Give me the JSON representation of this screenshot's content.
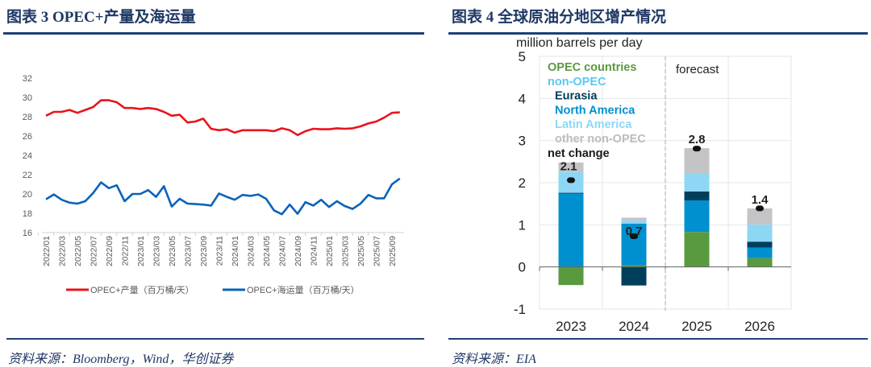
{
  "left": {
    "title": "图表 3   OPEC+产量及海运量",
    "source": "资料来源：Bloomberg，Wind，华创证券"
  },
  "right": {
    "title": "图表 4   全球原油分地区增产情况",
    "source": "资料来源：EIA"
  },
  "chart_data": [
    {
      "type": "line",
      "title": "OPEC+产量及海运量",
      "ylim": [
        16,
        32
      ],
      "yticks": [
        16,
        18,
        20,
        22,
        24,
        26,
        28,
        30,
        32
      ],
      "x_tick_labels": [
        "2022/01",
        "2022/03",
        "2022/05",
        "2022/07",
        "2022/09",
        "2022/11",
        "2023/01",
        "2023/03",
        "2023/05",
        "2023/07",
        "2023/09",
        "2023/11",
        "2024/01",
        "2024/03",
        "2024/05",
        "2024/07",
        "2024/09",
        "2024/11",
        "2025/01",
        "2025/03",
        "2025/05",
        "2025/07",
        "2025/09"
      ],
      "x_start": "2022/01",
      "x_end": "2025/10",
      "legend_position": "bottom",
      "series": [
        {
          "name": "OPEC+产量（百万桶/天）",
          "color": "#e8141c",
          "values": [
            28.1,
            28.5,
            28.5,
            28.7,
            28.4,
            28.7,
            29.0,
            29.7,
            29.7,
            29.5,
            28.9,
            28.9,
            28.8,
            28.9,
            28.8,
            28.5,
            28.1,
            28.2,
            27.4,
            27.5,
            27.8,
            26.75,
            26.6,
            26.7,
            26.35,
            26.6,
            26.6,
            26.6,
            26.6,
            26.5,
            26.8,
            26.6,
            26.1,
            26.5,
            26.75,
            26.7,
            26.7,
            26.8,
            26.75,
            26.8,
            27.0,
            27.3,
            27.5,
            27.9,
            28.4,
            28.45
          ]
        },
        {
          "name": "OPEC+海运量（百万桶/天）",
          "color": "#0a63b8",
          "values": [
            19.45,
            19.95,
            19.4,
            19.1,
            19.0,
            19.25,
            20.1,
            21.2,
            20.6,
            20.9,
            19.25,
            20.0,
            20.0,
            20.4,
            19.7,
            20.8,
            18.7,
            19.5,
            19.0,
            18.95,
            18.9,
            18.8,
            20.05,
            19.7,
            19.4,
            19.9,
            19.8,
            19.95,
            19.5,
            18.3,
            17.9,
            18.9,
            17.95,
            19.15,
            18.8,
            19.4,
            18.65,
            19.25,
            18.75,
            18.45,
            19.0,
            19.9,
            19.55,
            19.55,
            21.0,
            21.6
          ]
        }
      ]
    },
    {
      "type": "bar",
      "stacked": true,
      "title": "全球原油分地区增产情况",
      "ylabel": "million barrels per day",
      "ylim": [
        -1,
        5
      ],
      "yticks": [
        -1,
        0,
        1,
        2,
        3,
        4,
        5
      ],
      "categories": [
        "2023",
        "2024",
        "2025",
        "2026"
      ],
      "forecast_label": "forecast",
      "forecast_from": "2025",
      "legend_position": "top-left",
      "legend": [
        {
          "label": "OPEC countries",
          "color": "#5a9a3e",
          "indent": false
        },
        {
          "label": "non-OPEC",
          "color": "#5bc8f0",
          "indent": false
        },
        {
          "label": "Eurasia",
          "color": "#003f5c",
          "indent": true
        },
        {
          "label": "North America",
          "color": "#0090d0",
          "indent": true
        },
        {
          "label": "Latin America",
          "color": "#8dd7f5",
          "indent": true
        },
        {
          "label": "other non-OPEC",
          "color": "#bdbdbf",
          "indent": true
        },
        {
          "label": "net change",
          "color": "#1a1a1a",
          "indent": false
        }
      ],
      "series": [
        {
          "name": "OPEC countries",
          "color": "#5a9a3e",
          "values": [
            -0.43,
            0.04,
            0.83,
            0.21
          ]
        },
        {
          "name": "North America",
          "color": "#0090d0",
          "values": [
            1.74,
            0.99,
            0.75,
            0.25
          ]
        },
        {
          "name": "Eurasia",
          "color": "#003f5c",
          "values": [
            0.02,
            -0.44,
            0.21,
            0.14
          ]
        },
        {
          "name": "Latin America",
          "color": "#8dd7f5",
          "values": [
            0.5,
            0.07,
            0.44,
            0.41
          ]
        },
        {
          "name": "other non-OPEC",
          "color": "#c4c4c6",
          "values": [
            0.22,
            0.07,
            0.59,
            0.38
          ]
        }
      ],
      "net_change": [
        2.06,
        0.73,
        2.81,
        1.39
      ],
      "net_change_labels": [
        "2.1",
        "0.7",
        "2.8",
        "1.4"
      ]
    }
  ]
}
